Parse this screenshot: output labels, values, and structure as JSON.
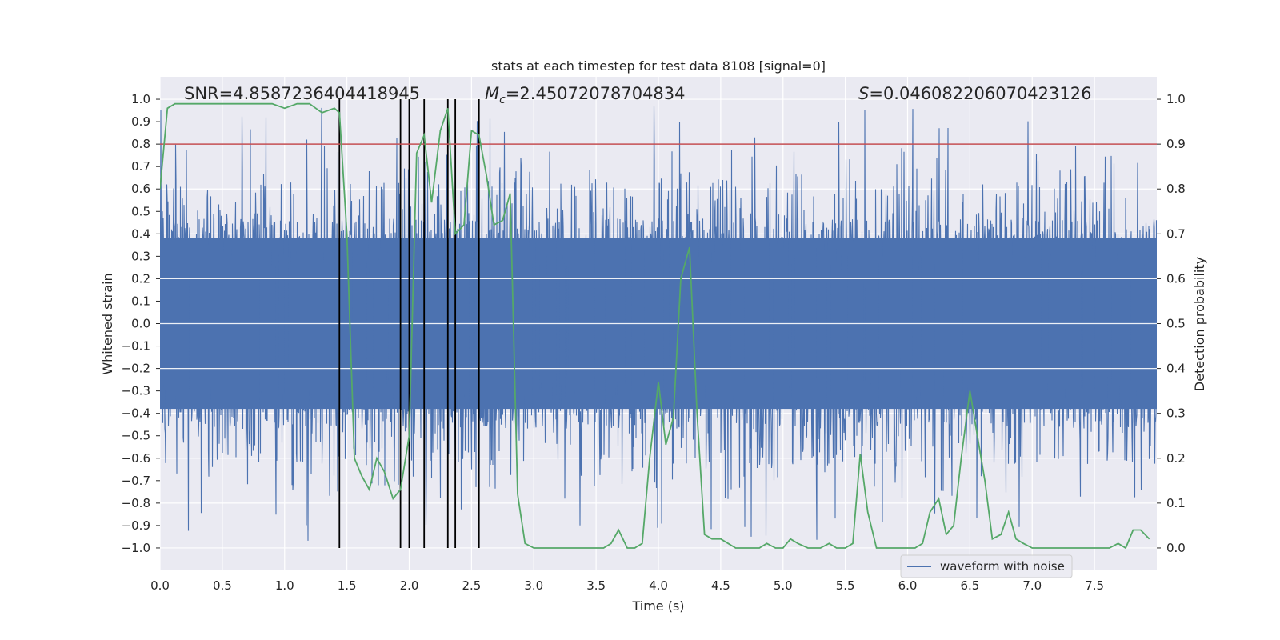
{
  "chart_data": {
    "type": "line",
    "title": "stats at each timestep for test data 8108 [signal=0]",
    "xlabel": "Time (s)",
    "ylabel": "Whitened strain",
    "y2label": "Detection probability",
    "xlim": [
      0,
      8
    ],
    "ylim": [
      -1.1,
      1.1
    ],
    "y2lim": [
      -0.05,
      1.05
    ],
    "xticks": [
      0.0,
      0.5,
      1.0,
      1.5,
      2.0,
      2.5,
      3.0,
      3.5,
      4.0,
      4.5,
      5.0,
      5.5,
      6.0,
      6.5,
      7.0,
      7.5
    ],
    "xtick_labels": [
      "0.0",
      "0.5",
      "1.0",
      "1.5",
      "2.0",
      "2.5",
      "3.0",
      "3.5",
      "4.0",
      "4.5",
      "5.0",
      "5.5",
      "6.0",
      "6.5",
      "7.0",
      "7.5"
    ],
    "yticks": [
      1.0,
      0.9,
      0.8,
      0.7,
      0.6,
      0.5,
      0.4,
      0.3,
      0.2,
      0.1,
      0.0,
      -0.1,
      -0.2,
      -0.3,
      -0.4,
      -0.5,
      -0.6,
      -0.7,
      -0.8,
      -0.9,
      -1.0
    ],
    "ytick_labels": [
      "1.0",
      "0.9",
      "0.8",
      "0.7",
      "0.6",
      "0.5",
      "0.4",
      "0.3",
      "0.2",
      "0.1",
      "0.0",
      "−0.1",
      "−0.2",
      "−0.3",
      "−0.4",
      "−0.5",
      "−0.6",
      "−0.7",
      "−0.8",
      "−0.9",
      "−1.0"
    ],
    "y2ticks": [
      1.0,
      0.9,
      0.8,
      0.7,
      0.6,
      0.5,
      0.4,
      0.3,
      0.2,
      0.1,
      0.0
    ],
    "y2tick_labels": [
      "1.0",
      "0.9",
      "0.8",
      "0.7",
      "0.6",
      "0.5",
      "0.4",
      "0.3",
      "0.2",
      "0.1",
      "0.0"
    ],
    "annotations": {
      "snr": "SNR=4.8587236404418945",
      "mc_symbol": "M",
      "mc_sub": "c",
      "mc_value": "=2.45072078704834",
      "s_symbol": "S",
      "s_value": "=0.046082206070423126"
    },
    "legend": {
      "label": "waveform with noise",
      "position": "lower-right"
    },
    "threshold_probability": 0.9,
    "vertical_markers_s": [
      1.44,
      1.93,
      2.0,
      2.12,
      2.31,
      2.37,
      2.56
    ],
    "waveform": {
      "name": "waveform with noise",
      "duration_s": 8.0,
      "typical_peak": 0.55,
      "max_abs": 1.0
    },
    "probability_series": {
      "name": "Detection probability",
      "t": [
        0.0,
        0.06,
        0.12,
        0.2,
        0.3,
        0.4,
        0.5,
        0.6,
        0.7,
        0.8,
        0.9,
        1.0,
        1.1,
        1.2,
        1.25,
        1.3,
        1.4,
        1.44,
        1.5,
        1.56,
        1.62,
        1.68,
        1.74,
        1.8,
        1.87,
        1.93,
        2.0,
        2.06,
        2.12,
        2.18,
        2.25,
        2.31,
        2.37,
        2.44,
        2.5,
        2.56,
        2.62,
        2.68,
        2.75,
        2.81,
        2.87,
        2.93,
        3.0,
        3.06,
        3.12,
        3.25,
        3.35,
        3.45,
        3.56,
        3.62,
        3.68,
        3.75,
        3.81,
        3.87,
        3.93,
        4.0,
        4.06,
        4.12,
        4.18,
        4.25,
        4.31,
        4.37,
        4.43,
        4.5,
        4.56,
        4.62,
        4.7,
        4.81,
        4.87,
        4.94,
        5.0,
        5.06,
        5.12,
        5.2,
        5.3,
        5.37,
        5.43,
        5.5,
        5.56,
        5.62,
        5.68,
        5.75,
        5.81,
        5.87,
        5.93,
        6.0,
        6.06,
        6.12,
        6.18,
        6.25,
        6.31,
        6.37,
        6.43,
        6.5,
        6.56,
        6.62,
        6.68,
        6.75,
        6.81,
        6.87,
        6.93,
        7.0,
        7.1,
        7.2,
        7.3,
        7.4,
        7.5,
        7.62,
        7.69,
        7.75,
        7.81,
        7.87,
        7.94
      ],
      "p": [
        0.8,
        0.98,
        0.99,
        0.99,
        0.99,
        0.99,
        0.99,
        0.99,
        0.99,
        0.99,
        0.99,
        0.98,
        0.99,
        0.99,
        0.98,
        0.97,
        0.98,
        0.97,
        0.7,
        0.2,
        0.16,
        0.13,
        0.2,
        0.17,
        0.11,
        0.13,
        0.25,
        0.88,
        0.92,
        0.77,
        0.93,
        0.98,
        0.7,
        0.72,
        0.93,
        0.92,
        0.83,
        0.72,
        0.73,
        0.79,
        0.12,
        0.01,
        0.0,
        0.0,
        0.0,
        0.0,
        0.0,
        0.0,
        0.0,
        0.01,
        0.04,
        0.0,
        0.0,
        0.01,
        0.2,
        0.37,
        0.23,
        0.29,
        0.6,
        0.67,
        0.3,
        0.03,
        0.02,
        0.02,
        0.01,
        0.0,
        0.0,
        0.0,
        0.01,
        0.0,
        0.0,
        0.02,
        0.01,
        0.0,
        0.0,
        0.01,
        0.0,
        0.0,
        0.01,
        0.21,
        0.08,
        0.0,
        0.0,
        0.0,
        0.0,
        0.0,
        0.0,
        0.01,
        0.08,
        0.11,
        0.03,
        0.05,
        0.2,
        0.35,
        0.25,
        0.15,
        0.02,
        0.03,
        0.08,
        0.02,
        0.01,
        0.0,
        0.0,
        0.0,
        0.0,
        0.0,
        0.0,
        0.0,
        0.01,
        0.0,
        0.04,
        0.04,
        0.02
      ]
    },
    "colors": {
      "background": "#eaeaf2",
      "grid": "#ffffff",
      "waveform": "#4c72b0",
      "probability": "#55a868",
      "threshold": "#c44e52",
      "marker": "#000000"
    }
  }
}
